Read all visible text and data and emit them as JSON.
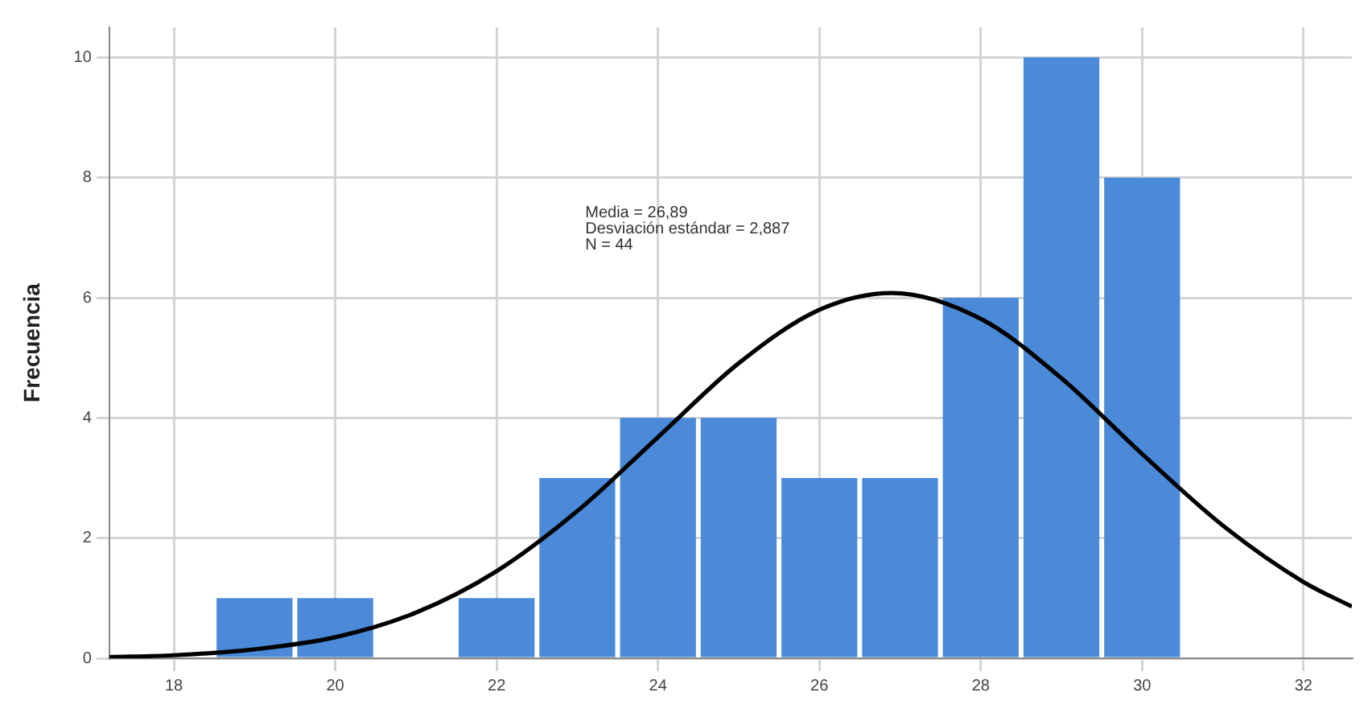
{
  "chart_data": {
    "type": "histogram",
    "ylabel": "Frecuencia",
    "bins": [
      18.5,
      19.5,
      20.5,
      21.5,
      22.5,
      23.5,
      24.5,
      25.5,
      26.5,
      27.5,
      28.5,
      29.5,
      30.5
    ],
    "values": [
      1,
      1,
      0,
      1,
      3,
      4,
      4,
      3,
      3,
      6,
      10,
      8
    ],
    "color": "#4a8ad8",
    "series": [
      {
        "type": "line",
        "color": "#000000",
        "x": [
          17.2,
          18,
          19,
          20,
          21,
          22,
          23,
          24,
          25,
          26,
          26.9,
          28,
          29,
          30,
          31,
          32,
          32.6
        ],
        "values": [
          0.02,
          0.05,
          0.15,
          0.35,
          0.76,
          1.45,
          2.45,
          3.68,
          4.91,
          5.8,
          6.08,
          5.65,
          4.66,
          3.4,
          2.21,
          1.27,
          0.86
        ]
      }
    ],
    "annotations": [
      "Media = 26,89",
      "Desviación estándar = 2,887",
      "N = 44"
    ],
    "xlim": [
      17.2,
      32.6
    ],
    "xticks": [
      18,
      20,
      22,
      24,
      26,
      28,
      30,
      32
    ],
    "ylim": [
      0,
      10.5
    ],
    "yticks": [
      0,
      2,
      4,
      6,
      8,
      10
    ],
    "grid": true,
    "legend": false
  }
}
